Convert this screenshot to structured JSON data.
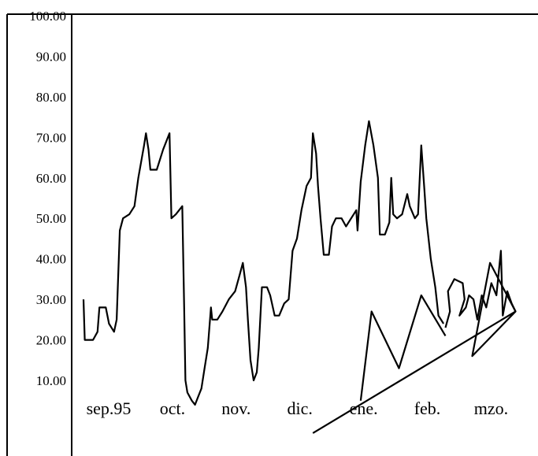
{
  "chart_data": {
    "type": "line",
    "title": "",
    "xlabel": "",
    "ylabel": "",
    "ylim": [
      0,
      100
    ],
    "grid": false,
    "y_ticks": [
      {
        "value": 100,
        "label": "100.00"
      },
      {
        "value": 90,
        "label": "90.00"
      },
      {
        "value": 80,
        "label": "80.00"
      },
      {
        "value": 70,
        "label": "70.00"
      },
      {
        "value": 60,
        "label": "60.00"
      },
      {
        "value": 50,
        "label": "50.00"
      },
      {
        "value": 40,
        "label": "40.00"
      },
      {
        "value": 30,
        "label": "30.00"
      },
      {
        "value": 20,
        "label": "20.00"
      },
      {
        "value": 10,
        "label": "10.00"
      }
    ],
    "categories": [
      "sep.95",
      "oct.",
      "nov.",
      "dic.",
      "ene.",
      "feb.",
      "mzo."
    ],
    "series": [
      {
        "values": [
          {
            "x": 0.0,
            "y": 30
          },
          {
            "x": 0.02,
            "y": 20
          },
          {
            "x": 0.15,
            "y": 20
          },
          {
            "x": 0.22,
            "y": 22
          },
          {
            "x": 0.25,
            "y": 28
          },
          {
            "x": 0.35,
            "y": 28
          },
          {
            "x": 0.4,
            "y": 24
          },
          {
            "x": 0.48,
            "y": 22
          },
          {
            "x": 0.52,
            "y": 25
          },
          {
            "x": 0.57,
            "y": 47
          },
          {
            "x": 0.62,
            "y": 50
          },
          {
            "x": 0.72,
            "y": 51
          },
          {
            "x": 0.8,
            "y": 53
          },
          {
            "x": 0.86,
            "y": 60
          },
          {
            "x": 0.95,
            "y": 68
          },
          {
            "x": 0.98,
            "y": 71
          },
          {
            "x": 1.02,
            "y": 67
          },
          {
            "x": 1.05,
            "y": 62
          },
          {
            "x": 1.15,
            "y": 62
          },
          {
            "x": 1.25,
            "y": 67
          },
          {
            "x": 1.35,
            "y": 71
          },
          {
            "x": 1.37,
            "y": 57
          },
          {
            "x": 1.38,
            "y": 50
          },
          {
            "x": 1.45,
            "y": 51
          },
          {
            "x": 1.55,
            "y": 53
          },
          {
            "x": 1.58,
            "y": 28
          },
          {
            "x": 1.6,
            "y": 10
          },
          {
            "x": 1.63,
            "y": 7
          },
          {
            "x": 1.7,
            "y": 5
          },
          {
            "x": 1.75,
            "y": 4
          },
          {
            "x": 1.8,
            "y": 6
          },
          {
            "x": 1.85,
            "y": 8
          },
          {
            "x": 1.9,
            "y": 13
          },
          {
            "x": 1.95,
            "y": 18
          },
          {
            "x": 2.0,
            "y": 28
          },
          {
            "x": 2.02,
            "y": 25
          },
          {
            "x": 2.1,
            "y": 25
          },
          {
            "x": 2.18,
            "y": 27
          },
          {
            "x": 2.28,
            "y": 30
          },
          {
            "x": 2.38,
            "y": 32
          },
          {
            "x": 2.45,
            "y": 36
          },
          {
            "x": 2.5,
            "y": 39
          },
          {
            "x": 2.55,
            "y": 33
          },
          {
            "x": 2.58,
            "y": 25
          },
          {
            "x": 2.62,
            "y": 15
          },
          {
            "x": 2.67,
            "y": 10
          },
          {
            "x": 2.72,
            "y": 12
          },
          {
            "x": 2.75,
            "y": 18
          },
          {
            "x": 2.8,
            "y": 33
          },
          {
            "x": 2.88,
            "y": 33
          },
          {
            "x": 2.93,
            "y": 31
          },
          {
            "x": 3.0,
            "y": 26
          },
          {
            "x": 3.07,
            "y": 26
          },
          {
            "x": 3.15,
            "y": 29
          },
          {
            "x": 3.22,
            "y": 30
          },
          {
            "x": 3.28,
            "y": 42
          },
          {
            "x": 3.35,
            "y": 45
          },
          {
            "x": 3.42,
            "y": 52
          },
          {
            "x": 3.5,
            "y": 58
          },
          {
            "x": 3.57,
            "y": 60
          },
          {
            "x": 3.6,
            "y": 71
          },
          {
            "x": 3.65,
            "y": 66
          },
          {
            "x": 3.68,
            "y": 58
          },
          {
            "x": 3.72,
            "y": 50
          },
          {
            "x": 3.77,
            "y": 41
          },
          {
            "x": 3.85,
            "y": 41
          },
          {
            "x": 3.9,
            "y": 48
          },
          {
            "x": 3.96,
            "y": 50
          },
          {
            "x": 4.05,
            "y": 50
          },
          {
            "x": 4.12,
            "y": 48
          },
          {
            "x": 4.2,
            "y": 50
          },
          {
            "x": 4.28,
            "y": 52
          },
          {
            "x": 4.3,
            "y": 47
          },
          {
            "x": 4.35,
            "y": 59
          },
          {
            "x": 4.42,
            "y": 68
          },
          {
            "x": 4.48,
            "y": 74
          },
          {
            "x": 4.55,
            "y": 68
          },
          {
            "x": 4.62,
            "y": 60
          },
          {
            "x": 4.65,
            "y": 46
          },
          {
            "x": 4.73,
            "y": 46
          },
          {
            "x": 4.8,
            "y": 49
          },
          {
            "x": 4.83,
            "y": 60
          },
          {
            "x": 4.86,
            "y": 51
          },
          {
            "x": 4.92,
            "y": 50
          },
          {
            "x": 5.0,
            "y": 51
          },
          {
            "x": 5.08,
            "y": 56
          },
          {
            "x": 5.12,
            "y": 53
          },
          {
            "x": 5.2,
            "y": 50
          },
          {
            "x": 5.25,
            "y": 51
          },
          {
            "x": 5.3,
            "y": 68
          },
          {
            "x": 5.35,
            "y": 57
          },
          {
            "x": 5.38,
            "y": 50
          },
          {
            "x": 5.45,
            "y": 40
          },
          {
            "x": 5.52,
            "y": 33
          },
          {
            "x": 5.57,
            "y": 26
          },
          {
            "x": 5.65,
            "y": 24
          }
        ]
      }
    ]
  },
  "annotations": {
    "zigzag": [
      {
        "x": 4.35,
        "y": 5
      },
      {
        "x": 4.52,
        "y": 27
      },
      {
        "x": 4.95,
        "y": 13
      },
      {
        "x": 5.3,
        "y": 31
      },
      {
        "x": 5.68,
        "y": 21
      }
    ],
    "trend_line": [
      {
        "x": 3.6,
        "y": -3
      },
      {
        "x": 6.78,
        "y": 27
      }
    ],
    "scribble": [
      {
        "x": 5.68,
        "y": 23
      },
      {
        "x": 5.75,
        "y": 27
      },
      {
        "x": 5.72,
        "y": 32
      },
      {
        "x": 5.82,
        "y": 35
      },
      {
        "x": 5.95,
        "y": 34
      },
      {
        "x": 5.98,
        "y": 30
      },
      {
        "x": 5.9,
        "y": 26
      },
      {
        "x": 6.0,
        "y": 28
      },
      {
        "x": 6.05,
        "y": 31
      },
      {
        "x": 6.12,
        "y": 30
      },
      {
        "x": 6.18,
        "y": 25
      },
      {
        "x": 6.25,
        "y": 31
      },
      {
        "x": 6.32,
        "y": 28
      },
      {
        "x": 6.4,
        "y": 34
      },
      {
        "x": 6.48,
        "y": 31
      },
      {
        "x": 6.55,
        "y": 42
      },
      {
        "x": 6.58,
        "y": 26
      },
      {
        "x": 6.65,
        "y": 32
      },
      {
        "x": 6.72,
        "y": 29
      },
      {
        "x": 6.78,
        "y": 27
      }
    ],
    "triangle": [
      {
        "x": 6.1,
        "y": 16
      },
      {
        "x": 6.38,
        "y": 39
      },
      {
        "x": 6.78,
        "y": 27
      }
    ]
  }
}
